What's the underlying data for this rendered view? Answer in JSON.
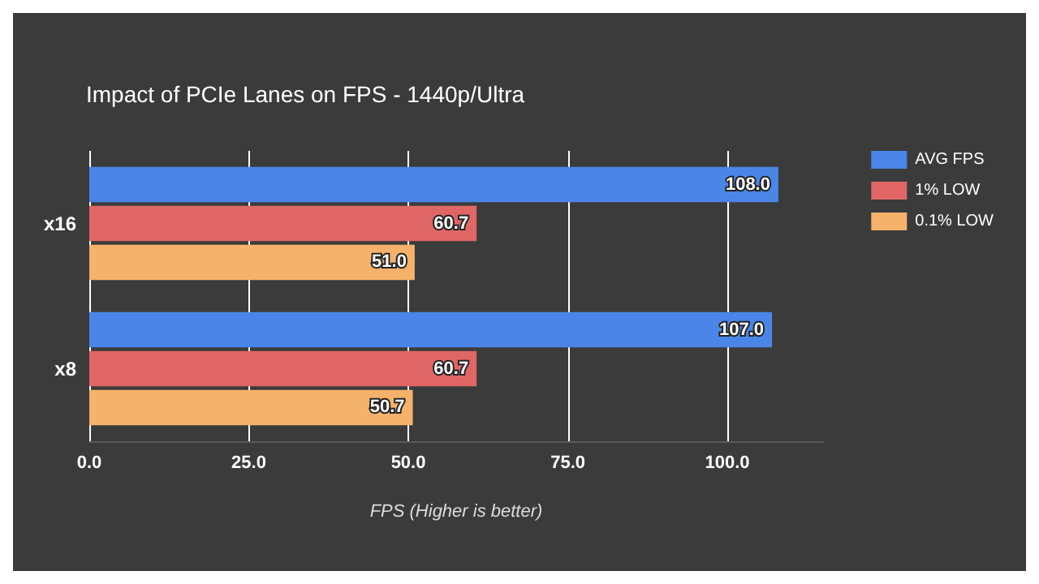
{
  "chart_data": {
    "type": "bar",
    "orientation": "horizontal",
    "title": "Impact of PCIe Lanes on FPS - 1440p/Ultra",
    "xlabel": "FPS (Higher is better)",
    "categories": [
      "x16",
      "x8"
    ],
    "series": [
      {
        "name": "AVG FPS",
        "color": "#4a86e8",
        "values": [
          108.0,
          107.0
        ],
        "value_labels": [
          "108.0",
          "107.0"
        ]
      },
      {
        "name": "1% LOW",
        "color": "#e06666",
        "values": [
          60.7,
          60.7
        ],
        "value_labels": [
          "60.7",
          "60.7"
        ]
      },
      {
        "name": "0.1% LOW",
        "color": "#f6b26b",
        "values": [
          51.0,
          50.7
        ],
        "value_labels": [
          "51.0",
          "50.7"
        ]
      }
    ],
    "xlim": [
      0,
      115
    ],
    "xticks": [
      {
        "value": 0,
        "label": "0.0"
      },
      {
        "value": 25,
        "label": "25.0"
      },
      {
        "value": 50,
        "label": "50.0"
      },
      {
        "value": 75,
        "label": "75.0"
      },
      {
        "value": 100,
        "label": "100.0"
      }
    ],
    "grid": "x",
    "legend": "top right"
  }
}
